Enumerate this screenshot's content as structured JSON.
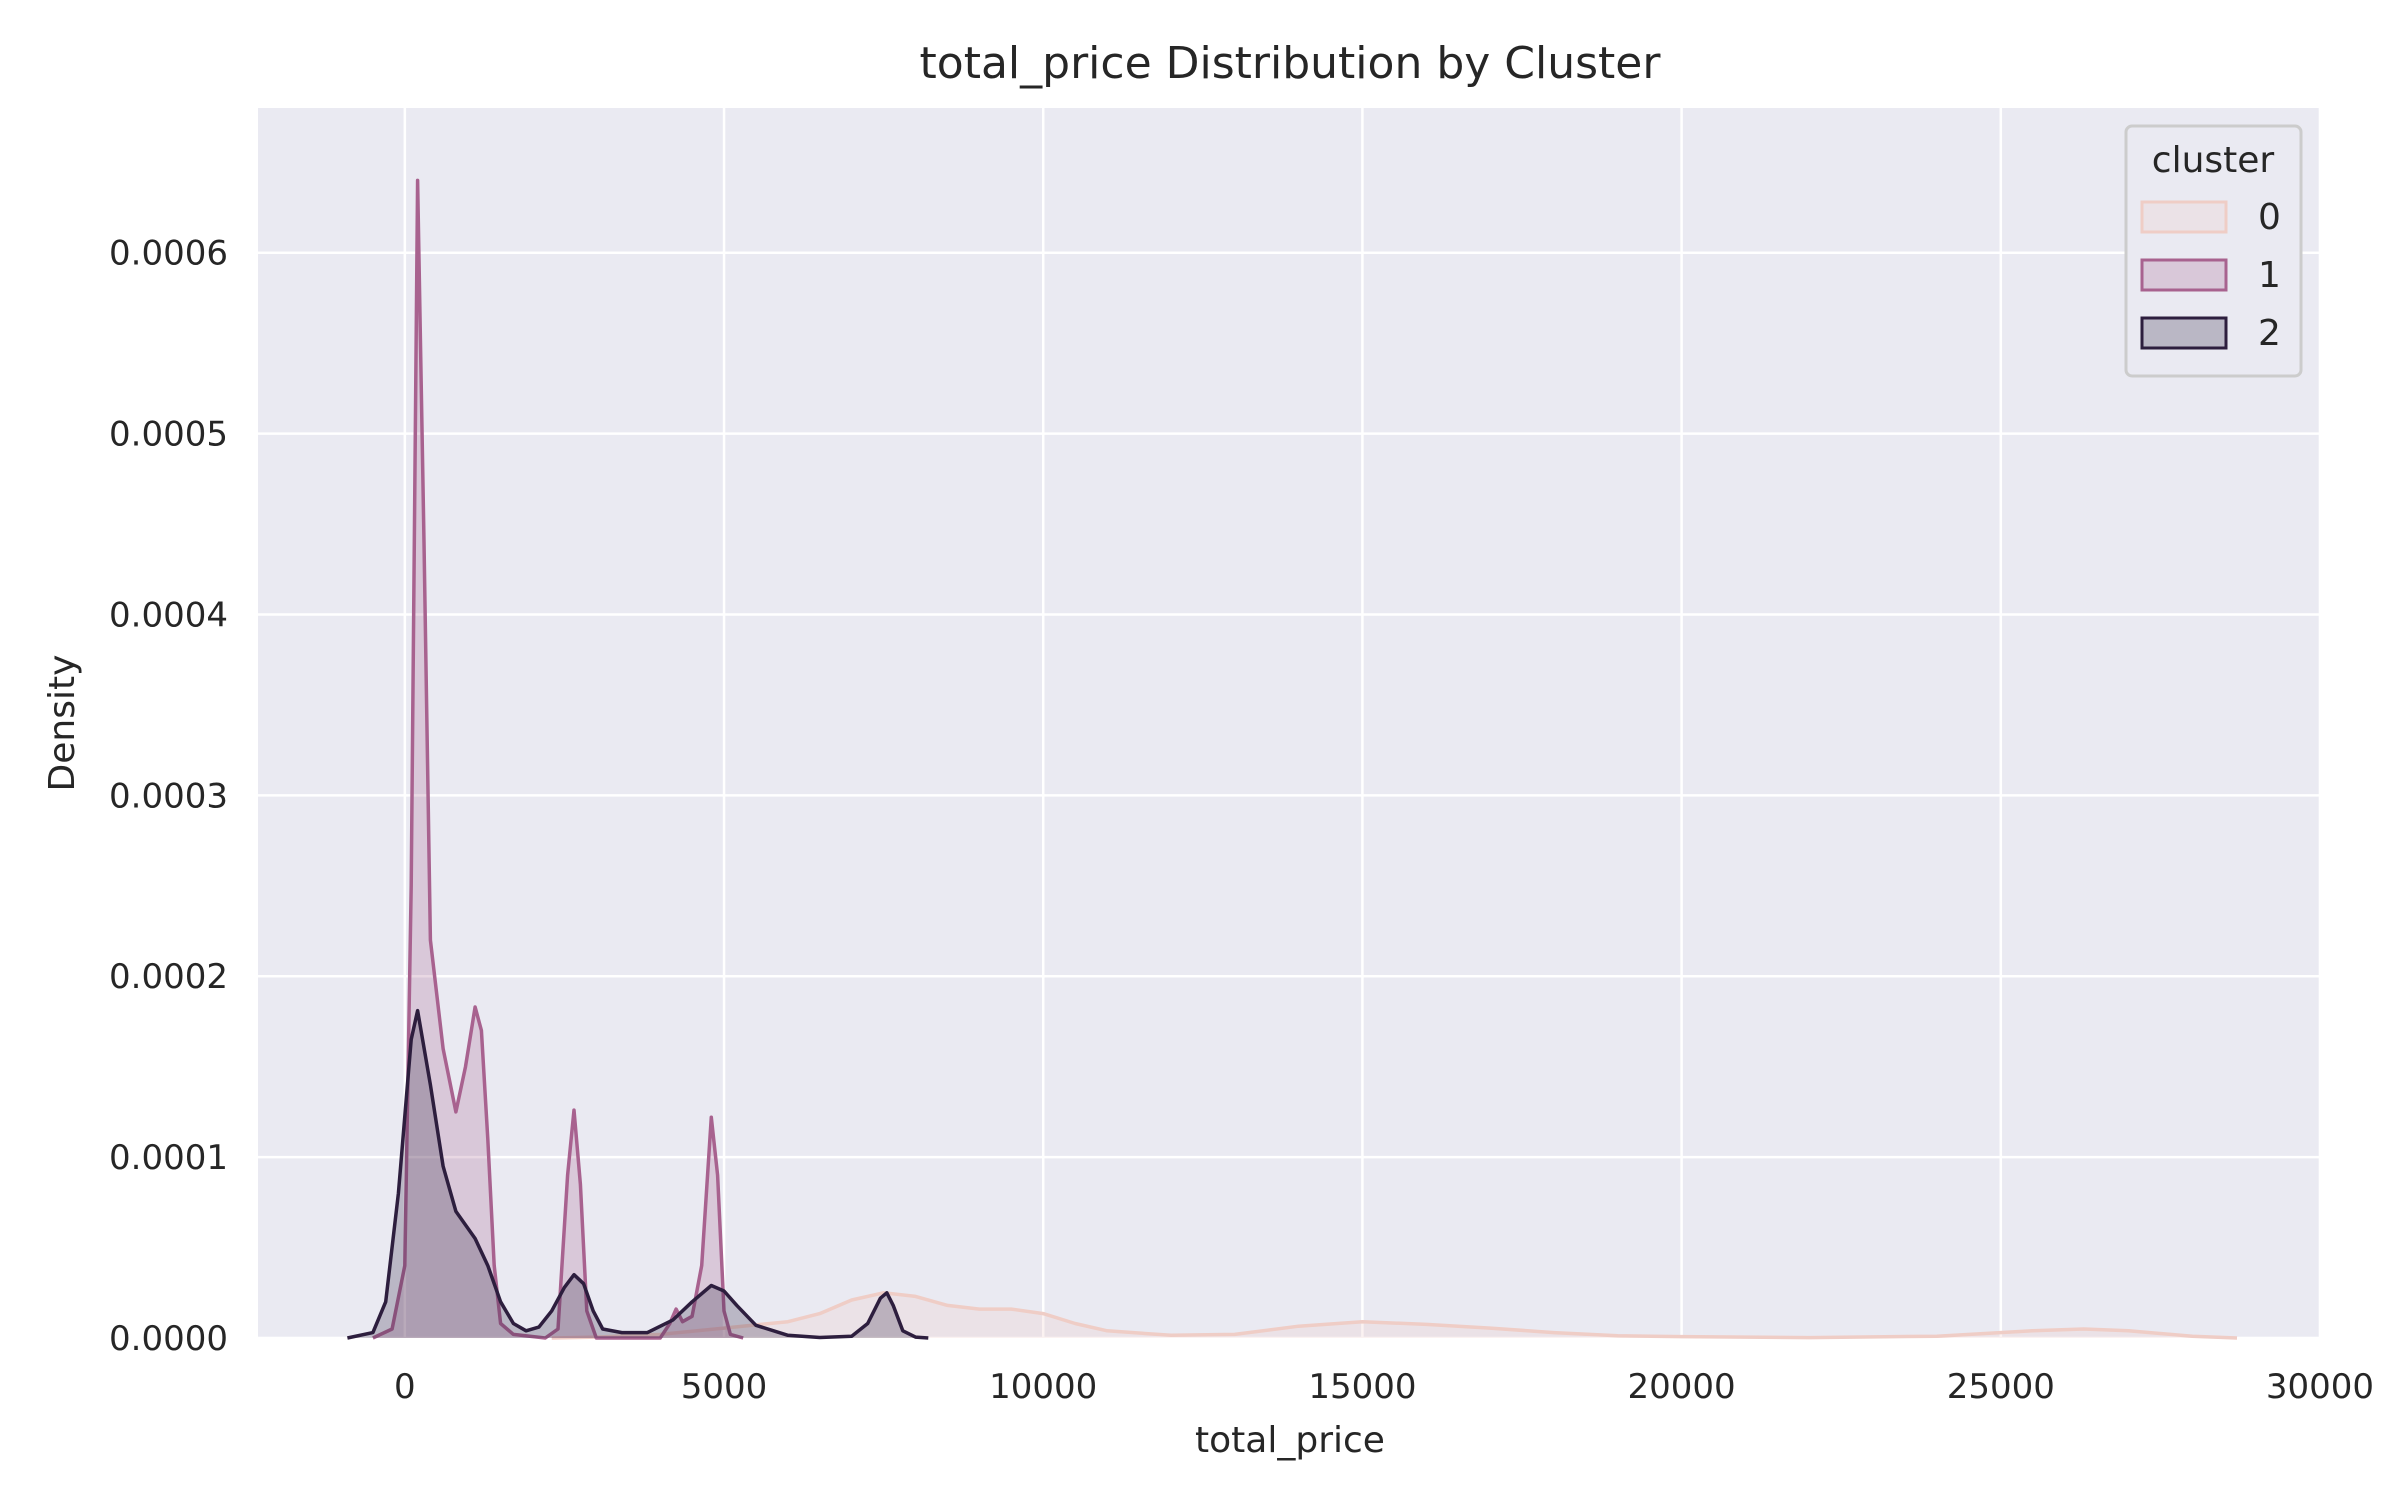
{
  "chart_data": {
    "type": "area",
    "title": "total_price Distribution by Cluster",
    "xlabel": "total_price",
    "ylabel": "Density",
    "xlim": [
      -2300,
      30000
    ],
    "ylim": [
      0,
      0.00068
    ],
    "x_ticks": [
      0,
      5000,
      10000,
      15000,
      20000,
      25000,
      30000
    ],
    "x_tick_labels": [
      "0",
      "5000",
      "10000",
      "15000",
      "20000",
      "25000",
      "30000"
    ],
    "y_ticks": [
      0,
      0.0001,
      0.0002,
      0.0003,
      0.0004,
      0.0005,
      0.0006
    ],
    "y_tick_labels": [
      "0.0000",
      "0.0001",
      "0.0002",
      "0.0003",
      "0.0004",
      "0.0005",
      "0.0006"
    ],
    "grid": true,
    "background": "#eaeaf2",
    "legend": {
      "title": "cluster",
      "placement": "top-right",
      "labels": [
        "0",
        "1",
        "2"
      ]
    },
    "series": [
      {
        "name": "0",
        "color": "#efcdc6",
        "points": [
          [
            2300,
            0
          ],
          [
            3000,
            5e-07
          ],
          [
            4000,
            2e-06
          ],
          [
            5000,
            5.5e-06
          ],
          [
            6000,
            9e-06
          ],
          [
            6500,
            1.35e-05
          ],
          [
            7000,
            2.1e-05
          ],
          [
            7500,
            2.5e-05
          ],
          [
            8000,
            2.3e-05
          ],
          [
            8500,
            1.8e-05
          ],
          [
            9000,
            1.6e-05
          ],
          [
            9500,
            1.6e-05
          ],
          [
            10000,
            1.35e-05
          ],
          [
            10500,
            8e-06
          ],
          [
            11000,
            4e-06
          ],
          [
            12000,
            1.5e-06
          ],
          [
            13000,
            2e-06
          ],
          [
            14000,
            6.5e-06
          ],
          [
            15000,
            9e-06
          ],
          [
            16000,
            7.5e-06
          ],
          [
            17000,
            5.5e-06
          ],
          [
            18000,
            3e-06
          ],
          [
            19000,
            1.2e-06
          ],
          [
            20000,
            8e-07
          ],
          [
            22000,
            2e-07
          ],
          [
            24000,
            1e-06
          ],
          [
            25500,
            4e-06
          ],
          [
            26300,
            5e-06
          ],
          [
            27000,
            4e-06
          ],
          [
            28000,
            1e-06
          ],
          [
            28700,
            0
          ]
        ]
      },
      {
        "name": "1",
        "color": "#a8628f",
        "points": [
          [
            -500,
            0
          ],
          [
            -200,
            5e-06
          ],
          [
            0,
            4e-05
          ],
          [
            100,
            0.00025
          ],
          [
            200,
            0.00064
          ],
          [
            300,
            0.00044
          ],
          [
            400,
            0.00022
          ],
          [
            600,
            0.00016
          ],
          [
            800,
            0.000125
          ],
          [
            950,
            0.00015
          ],
          [
            1100,
            0.000183
          ],
          [
            1200,
            0.00017
          ],
          [
            1300,
            0.00011
          ],
          [
            1400,
            4e-05
          ],
          [
            1500,
            8e-06
          ],
          [
            1700,
            2e-06
          ],
          [
            2200,
            0
          ],
          [
            2400,
            5e-06
          ],
          [
            2550,
            9e-05
          ],
          [
            2650,
            0.000126
          ],
          [
            2750,
            8.5e-05
          ],
          [
            2850,
            1.5e-05
          ],
          [
            3000,
            0
          ],
          [
            4000,
            0
          ],
          [
            4150,
            8e-06
          ],
          [
            4250,
            1.6e-05
          ],
          [
            4350,
            9e-06
          ],
          [
            4500,
            1.2e-05
          ],
          [
            4650,
            4e-05
          ],
          [
            4800,
            0.000122
          ],
          [
            4900,
            9e-05
          ],
          [
            5000,
            1.5e-05
          ],
          [
            5100,
            2e-06
          ],
          [
            5300,
            0
          ]
        ]
      },
      {
        "name": "2",
        "color": "#2d1e3e",
        "points": [
          [
            -900,
            0
          ],
          [
            -500,
            3e-06
          ],
          [
            -300,
            2e-05
          ],
          [
            -100,
            8e-05
          ],
          [
            100,
            0.000165
          ],
          [
            200,
            0.000181
          ],
          [
            400,
            0.00014
          ],
          [
            600,
            9.5e-05
          ],
          [
            800,
            7e-05
          ],
          [
            1100,
            5.5e-05
          ],
          [
            1300,
            4e-05
          ],
          [
            1500,
            2e-05
          ],
          [
            1700,
            8e-06
          ],
          [
            1900,
            4e-06
          ],
          [
            2100,
            6e-06
          ],
          [
            2300,
            1.5e-05
          ],
          [
            2500,
            2.8e-05
          ],
          [
            2650,
            3.5e-05
          ],
          [
            2800,
            3e-05
          ],
          [
            2950,
            1.5e-05
          ],
          [
            3100,
            5e-06
          ],
          [
            3400,
            3e-06
          ],
          [
            3800,
            3e-06
          ],
          [
            4200,
            1e-05
          ],
          [
            4500,
            2e-05
          ],
          [
            4800,
            2.9e-05
          ],
          [
            5000,
            2.6e-05
          ],
          [
            5200,
            1.8e-05
          ],
          [
            5500,
            7e-06
          ],
          [
            6000,
            1.5e-06
          ],
          [
            6500,
            3e-07
          ],
          [
            7000,
            1e-06
          ],
          [
            7250,
            8e-06
          ],
          [
            7450,
            2.2e-05
          ],
          [
            7550,
            2.5e-05
          ],
          [
            7650,
            1.8e-05
          ],
          [
            7800,
            4e-06
          ],
          [
            8000,
            5e-07
          ],
          [
            8200,
            0
          ]
        ]
      }
    ]
  }
}
